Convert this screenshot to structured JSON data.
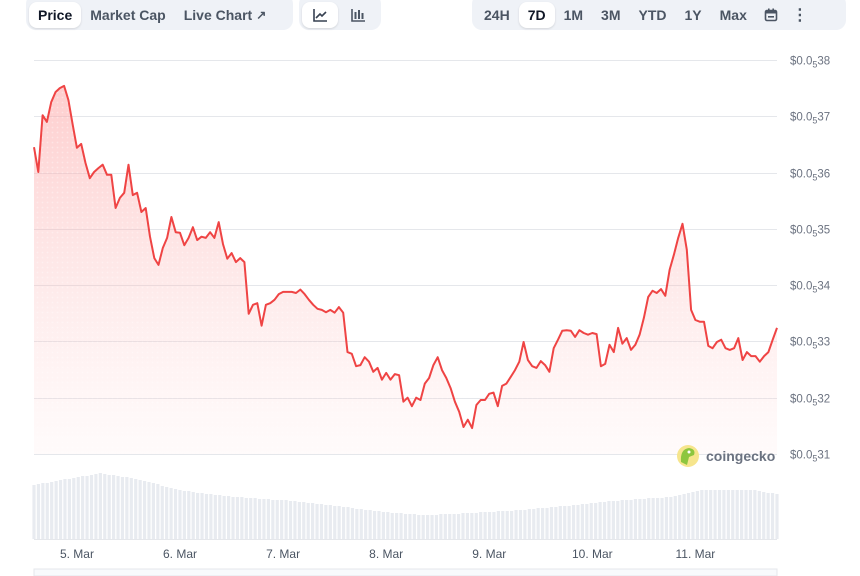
{
  "tabs": {
    "items": [
      {
        "label": "Price",
        "active": true
      },
      {
        "label": "Market Cap",
        "active": false
      },
      {
        "label": "Live Chart",
        "active": false
      }
    ],
    "live_chart_icon": "external-link-icon"
  },
  "chart_types": [
    {
      "icon": "line-chart-icon",
      "active": true
    },
    {
      "icon": "candlestick-chart-icon",
      "active": false
    }
  ],
  "ranges": {
    "items": [
      {
        "label": "24H"
      },
      {
        "label": "7D",
        "active": true
      },
      {
        "label": "1M"
      },
      {
        "label": "3M"
      },
      {
        "label": "YTD"
      },
      {
        "label": "1Y"
      },
      {
        "label": "Max"
      }
    ],
    "calendar_icon": "calendar-icon",
    "more_icon": "more-vertical-icon"
  },
  "watermark": "coingecko",
  "colors": {
    "line": "#ef4444",
    "fill": "#fecaca",
    "volume": "#e8ebf0",
    "grid": "#e5e7eb",
    "axis_text": "#6b7280"
  },
  "chart_data": {
    "type": "line",
    "start": "4 Mar 14:00",
    "interval_hours": 1,
    "ylim": [
      3.1e-06,
      3.8e-06
    ],
    "yticks": [
      {
        "value": 3.8e-06,
        "prefix": "$0.0",
        "zeros": "5",
        "digits": "38"
      },
      {
        "value": 3.7e-06,
        "prefix": "$0.0",
        "zeros": "5",
        "digits": "37"
      },
      {
        "value": 3.6e-06,
        "prefix": "$0.0",
        "zeros": "5",
        "digits": "36"
      },
      {
        "value": 3.5e-06,
        "prefix": "$0.0",
        "zeros": "5",
        "digits": "35"
      },
      {
        "value": 3.4e-06,
        "prefix": "$0.0",
        "zeros": "5",
        "digits": "34"
      },
      {
        "value": 3.3e-06,
        "prefix": "$0.0",
        "zeros": "5",
        "digits": "33"
      },
      {
        "value": 3.2e-06,
        "prefix": "$0.0",
        "zeros": "5",
        "digits": "32"
      },
      {
        "value": 3.1e-06,
        "prefix": "$0.0",
        "zeros": "5",
        "digits": "31"
      }
    ],
    "xticks": [
      {
        "label": "5. Mar",
        "hour_index": 10
      },
      {
        "label": "6. Mar",
        "hour_index": 34
      },
      {
        "label": "7. Mar",
        "hour_index": 58
      },
      {
        "label": "8. Mar",
        "hour_index": 82
      },
      {
        "label": "9. Mar",
        "hour_index": 106
      },
      {
        "label": "10. Mar",
        "hour_index": 130
      },
      {
        "label": "11. Mar",
        "hour_index": 154
      }
    ],
    "price": [
      3.645e-06,
      3.601e-06,
      3.702e-06,
      3.69e-06,
      3.725e-06,
      3.743e-06,
      3.75e-06,
      3.754e-06,
      3.729e-06,
      3.685e-06,
      3.644e-06,
      3.651e-06,
      3.617e-06,
      3.59e-06,
      3.601e-06,
      3.608e-06,
      3.614e-06,
      3.596e-06,
      3.596e-06,
      3.537e-06,
      3.555e-06,
      3.564e-06,
      3.614e-06,
      3.56e-06,
      3.564e-06,
      3.53e-06,
      3.537e-06,
      3.486e-06,
      3.448e-06,
      3.436e-06,
      3.466e-06,
      3.484e-06,
      3.521e-06,
      3.494e-06,
      3.493e-06,
      3.471e-06,
      3.484e-06,
      3.503e-06,
      3.48e-06,
      3.486e-06,
      3.484e-06,
      3.494e-06,
      3.484e-06,
      3.512e-06,
      3.473e-06,
      3.447e-06,
      3.457e-06,
      3.441e-06,
      3.448e-06,
      3.441e-06,
      3.349e-06,
      3.365e-06,
      3.368e-06,
      3.328e-06,
      3.365e-06,
      3.368e-06,
      3.374e-06,
      3.384e-06,
      3.388e-06,
      3.388e-06,
      3.388e-06,
      3.386e-06,
      3.392e-06,
      3.384e-06,
      3.374e-06,
      3.365e-06,
      3.358e-06,
      3.356e-06,
      3.352e-06,
      3.356e-06,
      3.351e-06,
      3.361e-06,
      3.351e-06,
      3.281e-06,
      3.278e-06,
      3.256e-06,
      3.258e-06,
      3.272e-06,
      3.264e-06,
      3.246e-06,
      3.253e-06,
      3.232e-06,
      3.244e-06,
      3.232e-06,
      3.242e-06,
      3.24e-06,
      3.193e-06,
      3.2e-06,
      3.185e-06,
      3.2e-06,
      3.196e-06,
      3.225e-06,
      3.235e-06,
      3.258e-06,
      3.272e-06,
      3.249e-06,
      3.235e-06,
      3.217e-06,
      3.193e-06,
      3.175e-06,
      3.148e-06,
      3.161e-06,
      3.146e-06,
      3.187e-06,
      3.196e-06,
      3.196e-06,
      3.207e-06,
      3.209e-06,
      3.185e-06,
      3.221e-06,
      3.225e-06,
      3.237e-06,
      3.249e-06,
      3.264e-06,
      3.299e-06,
      3.267e-06,
      3.256e-06,
      3.253e-06,
      3.265e-06,
      3.258e-06,
      3.246e-06,
      3.288e-06,
      3.303e-06,
      3.319e-06,
      3.32e-06,
      3.319e-06,
      3.308e-06,
      3.32e-06,
      3.315e-06,
      3.312e-06,
      3.315e-06,
      3.313e-06,
      3.256e-06,
      3.26e-06,
      3.294e-06,
      3.281e-06,
      3.324e-06,
      3.296e-06,
      3.306e-06,
      3.285e-06,
      3.294e-06,
      3.312e-06,
      3.342e-06,
      3.379e-06,
      3.39e-06,
      3.386e-06,
      3.393e-06,
      3.381e-06,
      3.427e-06,
      3.454e-06,
      3.484e-06,
      3.509e-06,
      3.463e-06,
      3.356e-06,
      3.338e-06,
      3.335e-06,
      3.335e-06,
      3.292e-06,
      3.288e-06,
      3.299e-06,
      3.303e-06,
      3.288e-06,
      3.285e-06,
      3.288e-06,
      3.306e-06,
      3.267e-06,
      3.281e-06,
      3.274e-06,
      3.274e-06,
      3.264e-06,
      3.274e-06,
      3.281e-06,
      3.303e-06,
      3.324e-06
    ],
    "volume_relative": [
      54,
      55,
      56,
      56,
      57,
      58,
      59,
      60,
      60,
      61,
      62,
      63,
      63,
      64,
      65,
      66,
      65,
      64,
      64,
      63,
      62,
      62,
      61,
      60,
      59,
      58,
      57,
      56,
      55,
      53,
      52,
      51,
      50,
      49,
      48,
      48,
      47,
      46,
      46,
      45,
      45,
      44,
      44,
      43,
      43,
      42,
      42,
      42,
      41,
      41,
      41,
      40,
      40,
      40,
      39,
      39,
      39,
      39,
      38,
      38,
      37,
      37,
      36,
      36,
      35,
      35,
      34,
      34,
      33,
      33,
      32,
      32,
      31,
      30,
      30,
      29,
      29,
      28,
      28,
      27,
      27,
      26,
      26,
      26,
      25,
      25,
      25,
      24,
      24,
      24,
      24,
      24,
      25,
      25,
      25,
      25,
      25,
      26,
      26,
      26,
      26,
      27,
      27,
      27,
      27,
      28,
      28,
      28,
      28,
      29,
      29,
      29,
      30,
      30,
      31,
      31,
      31,
      32,
      32,
      33,
      33,
      33,
      34,
      34,
      35,
      35,
      36,
      36,
      37,
      37,
      38,
      38,
      38,
      39,
      39,
      39,
      40,
      40,
      40,
      41,
      41,
      41,
      41,
      42,
      42,
      43,
      44,
      45,
      46,
      47,
      48,
      49,
      49,
      49,
      49,
      49,
      49,
      49,
      49,
      49,
      49,
      49,
      49,
      49,
      48,
      47,
      46,
      46,
      45
    ]
  }
}
